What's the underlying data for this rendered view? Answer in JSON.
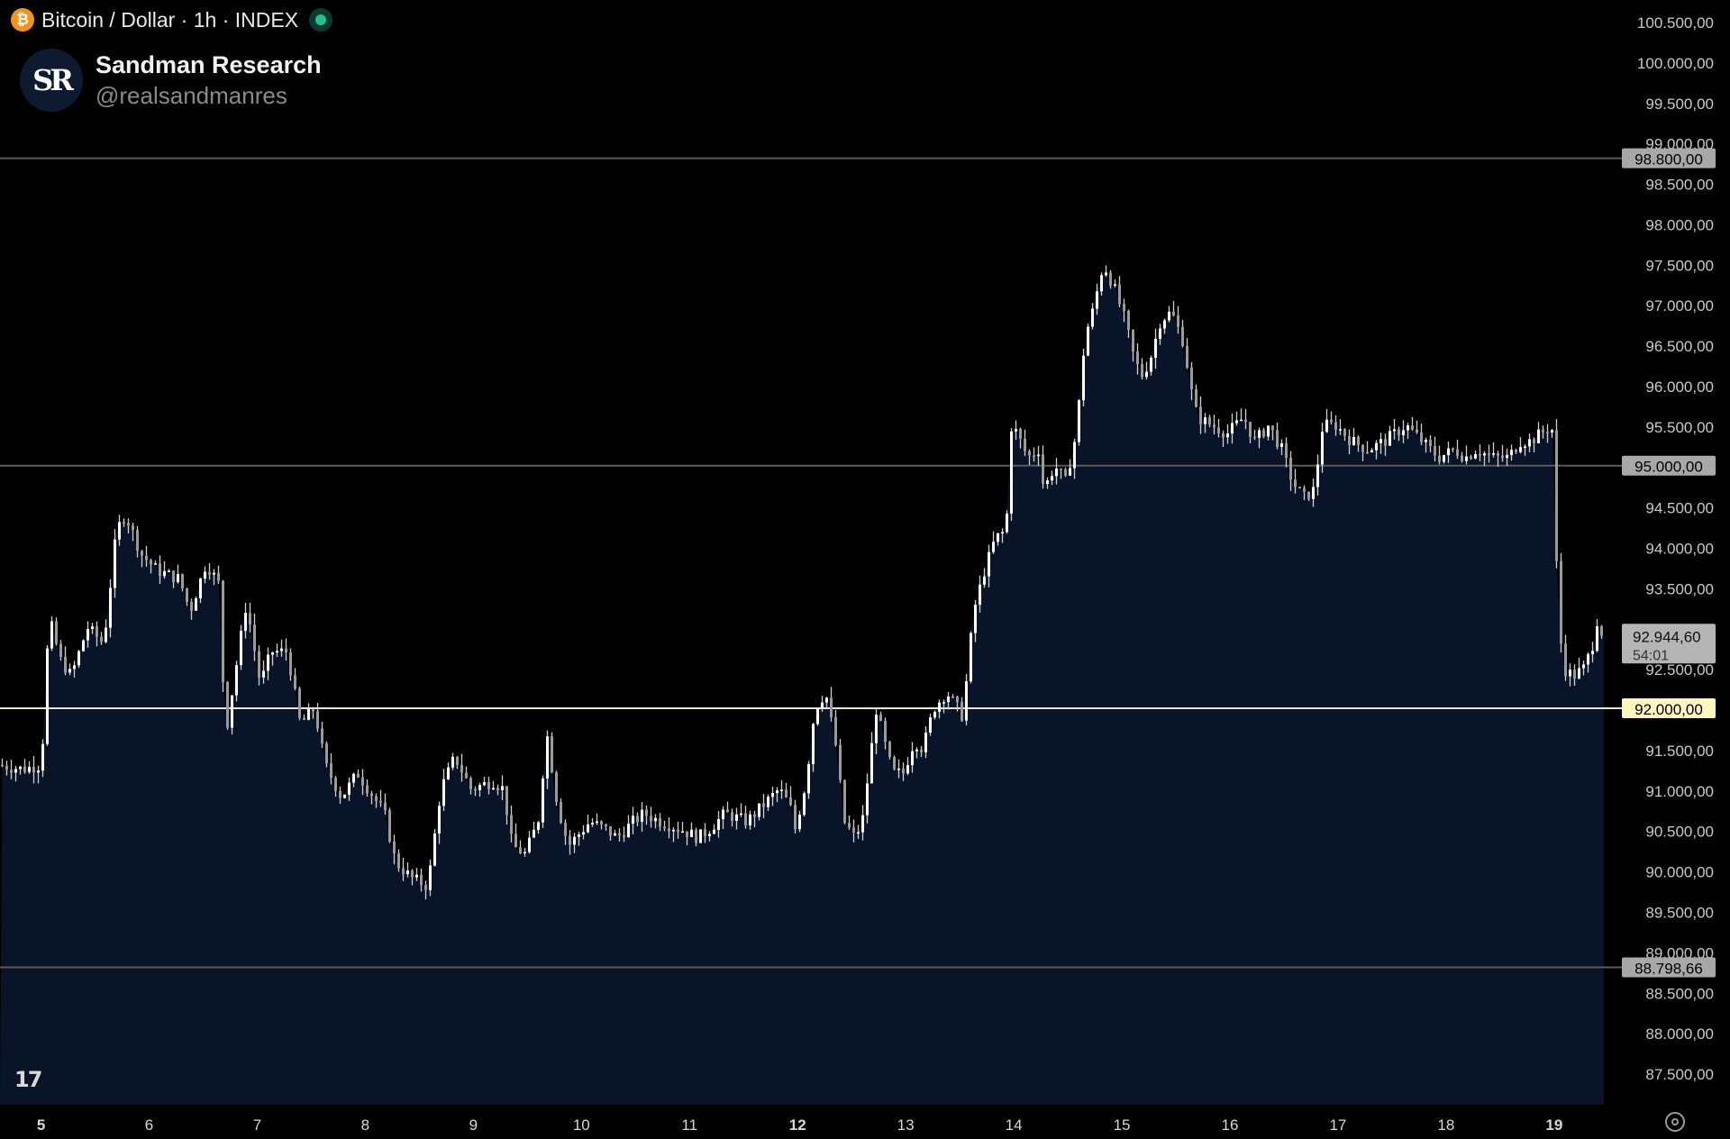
{
  "header": {
    "coin_glyph": "₿",
    "title": "Bitcoin / Dollar · 1h · INDEX"
  },
  "brand": {
    "logo": "SR",
    "name": "Sandman Research",
    "handle": "@realsandmanres"
  },
  "watermark": "17",
  "icons": [
    "bitcoin-icon",
    "live-status-icon",
    "tradingview-logo-icon",
    "settings-icon"
  ],
  "colors": {
    "background": "#000000",
    "area_fill": "#0a1428",
    "candle": "#ffffff",
    "level_line": "#5a5a5a",
    "highlight_line": "#e9e9d0",
    "highlight_label_bg": "#fff6c0",
    "label_bg": "#a8a8a8",
    "axis_text": "#c8c8c8"
  },
  "chart_data": {
    "type": "candlestick",
    "timeframe": "1h",
    "ylim": [
      87300,
      100600
    ],
    "y_ticks": [
      "87.500,00",
      "88.000,00",
      "88.500,00",
      "89.000,00",
      "89.500,00",
      "90.000,00",
      "90.500,00",
      "91.000,00",
      "91.500,00",
      "92.000,00",
      "92.500,00",
      "93.000,00",
      "93.500,00",
      "94.000,00",
      "94.500,00",
      "95.000,00",
      "95.500,00",
      "96.000,00",
      "96.500,00",
      "97.000,00",
      "97.500,00",
      "98.000,00",
      "98.500,00",
      "99.000,00",
      "99.500,00",
      "100.000,00",
      "100.500,00"
    ],
    "y_tick_values": [
      87500,
      88000,
      88500,
      89000,
      89500,
      90000,
      90500,
      91000,
      91500,
      92000,
      92500,
      93000,
      93500,
      94000,
      94500,
      95000,
      95500,
      96000,
      96500,
      97000,
      97500,
      98000,
      98500,
      99000,
      99500,
      100000,
      100500
    ],
    "x_ticks": [
      {
        "label": "5",
        "day": 5,
        "bold": true
      },
      {
        "label": "6",
        "day": 6,
        "bold": false
      },
      {
        "label": "7",
        "day": 7,
        "bold": false
      },
      {
        "label": "8",
        "day": 8,
        "bold": false
      },
      {
        "label": "9",
        "day": 9,
        "bold": false
      },
      {
        "label": "10",
        "day": 10,
        "bold": false
      },
      {
        "label": "11",
        "day": 11,
        "bold": false
      },
      {
        "label": "12",
        "day": 12,
        "bold": true
      },
      {
        "label": "13",
        "day": 13,
        "bold": false
      },
      {
        "label": "14",
        "day": 14,
        "bold": false
      },
      {
        "label": "15",
        "day": 15,
        "bold": false
      },
      {
        "label": "16",
        "day": 16,
        "bold": false
      },
      {
        "label": "17",
        "day": 17,
        "bold": false
      },
      {
        "label": "18",
        "day": 18,
        "bold": false
      },
      {
        "label": "19",
        "day": 19,
        "bold": true
      }
    ],
    "x_range_days": [
      4.62,
      19.46
    ],
    "price_path": [
      [
        4.62,
        91300
      ],
      [
        4.85,
        91250
      ],
      [
        5.03,
        91300
      ],
      [
        5.05,
        92200
      ],
      [
        5.1,
        93100
      ],
      [
        5.2,
        92600
      ],
      [
        5.3,
        92400
      ],
      [
        5.45,
        93000
      ],
      [
        5.6,
        92800
      ],
      [
        5.72,
        94200
      ],
      [
        5.8,
        94400
      ],
      [
        5.95,
        93900
      ],
      [
        6.1,
        93700
      ],
      [
        6.3,
        93600
      ],
      [
        6.4,
        93200
      ],
      [
        6.55,
        93800
      ],
      [
        6.68,
        93500
      ],
      [
        6.72,
        91600
      ],
      [
        6.8,
        92300
      ],
      [
        6.92,
        93300
      ],
      [
        7.05,
        92300
      ],
      [
        7.15,
        92700
      ],
      [
        7.3,
        92700
      ],
      [
        7.42,
        91800
      ],
      [
        7.55,
        92000
      ],
      [
        7.65,
        91300
      ],
      [
        7.8,
        90900
      ],
      [
        7.95,
        91200
      ],
      [
        8.05,
        91000
      ],
      [
        8.2,
        90700
      ],
      [
        8.3,
        90100
      ],
      [
        8.45,
        89900
      ],
      [
        8.6,
        89800
      ],
      [
        8.72,
        91000
      ],
      [
        8.85,
        91400
      ],
      [
        9.0,
        91000
      ],
      [
        9.2,
        91100
      ],
      [
        9.3,
        91000
      ],
      [
        9.38,
        90300
      ],
      [
        9.5,
        90200
      ],
      [
        9.62,
        90600
      ],
      [
        9.7,
        91700
      ],
      [
        9.8,
        90800
      ],
      [
        9.9,
        90300
      ],
      [
        10.1,
        90600
      ],
      [
        10.25,
        90500
      ],
      [
        10.35,
        90400
      ],
      [
        10.5,
        90600
      ],
      [
        10.6,
        90700
      ],
      [
        10.75,
        90600
      ],
      [
        10.95,
        90500
      ],
      [
        11.1,
        90400
      ],
      [
        11.2,
        90500
      ],
      [
        11.35,
        90700
      ],
      [
        11.55,
        90600
      ],
      [
        11.7,
        90800
      ],
      [
        11.85,
        91000
      ],
      [
        11.95,
        90800
      ],
      [
        12.0,
        90500
      ],
      [
        12.1,
        91100
      ],
      [
        12.18,
        92000
      ],
      [
        12.28,
        92200
      ],
      [
        12.38,
        91500
      ],
      [
        12.45,
        90600
      ],
      [
        12.55,
        90400
      ],
      [
        12.62,
        90600
      ],
      [
        12.75,
        92000
      ],
      [
        12.82,
        91600
      ],
      [
        12.9,
        91200
      ],
      [
        13.0,
        91200
      ],
      [
        13.1,
        91600
      ],
      [
        13.18,
        91500
      ],
      [
        13.28,
        92000
      ],
      [
        13.4,
        92200
      ],
      [
        13.55,
        91900
      ],
      [
        13.65,
        93200
      ],
      [
        13.75,
        93700
      ],
      [
        13.85,
        94100
      ],
      [
        13.95,
        94200
      ],
      [
        14.0,
        95500
      ],
      [
        14.05,
        95400
      ],
      [
        14.15,
        95100
      ],
      [
        14.25,
        95200
      ],
      [
        14.3,
        94700
      ],
      [
        14.4,
        95000
      ],
      [
        14.5,
        94800
      ],
      [
        14.6,
        95400
      ],
      [
        14.68,
        96600
      ],
      [
        14.75,
        96900
      ],
      [
        14.85,
        97500
      ],
      [
        14.95,
        97200
      ],
      [
        15.05,
        96800
      ],
      [
        15.12,
        96400
      ],
      [
        15.2,
        96100
      ],
      [
        15.28,
        96300
      ],
      [
        15.38,
        96800
      ],
      [
        15.48,
        96900
      ],
      [
        15.6,
        96500
      ],
      [
        15.65,
        96000
      ],
      [
        15.72,
        95600
      ],
      [
        15.85,
        95500
      ],
      [
        16.0,
        95400
      ],
      [
        16.15,
        95600
      ],
      [
        16.25,
        95300
      ],
      [
        16.38,
        95500
      ],
      [
        16.5,
        95200
      ],
      [
        16.6,
        94800
      ],
      [
        16.7,
        94600
      ],
      [
        16.8,
        94700
      ],
      [
        16.88,
        95500
      ],
      [
        17.0,
        95500
      ],
      [
        17.15,
        95300
      ],
      [
        17.3,
        95200
      ],
      [
        17.45,
        95300
      ],
      [
        17.55,
        95400
      ],
      [
        17.65,
        95500
      ],
      [
        17.8,
        95300
      ],
      [
        17.95,
        95100
      ],
      [
        18.1,
        95200
      ],
      [
        18.2,
        95100
      ],
      [
        18.3,
        95200
      ],
      [
        18.45,
        95100
      ],
      [
        18.6,
        95100
      ],
      [
        18.7,
        95300
      ],
      [
        18.8,
        95300
      ],
      [
        18.9,
        95400
      ],
      [
        19.0,
        95500
      ],
      [
        19.05,
        93500
      ],
      [
        19.1,
        92500
      ],
      [
        19.2,
        92400
      ],
      [
        19.3,
        92500
      ],
      [
        19.38,
        92800
      ],
      [
        19.42,
        93100
      ],
      [
        19.46,
        92944
      ]
    ],
    "current_price": 92944.6,
    "levels": [
      {
        "value": 98800,
        "label": "98.800,00",
        "highlight": false
      },
      {
        "value": 95000,
        "label": "95.000,00",
        "highlight": false
      },
      {
        "value": 92000,
        "label": "92.000,00",
        "highlight": true
      },
      {
        "value": 88798.66,
        "label": "88.798,66",
        "highlight": false
      }
    ],
    "price_label": {
      "price": "92.944,60",
      "countdown": "54:01"
    }
  }
}
